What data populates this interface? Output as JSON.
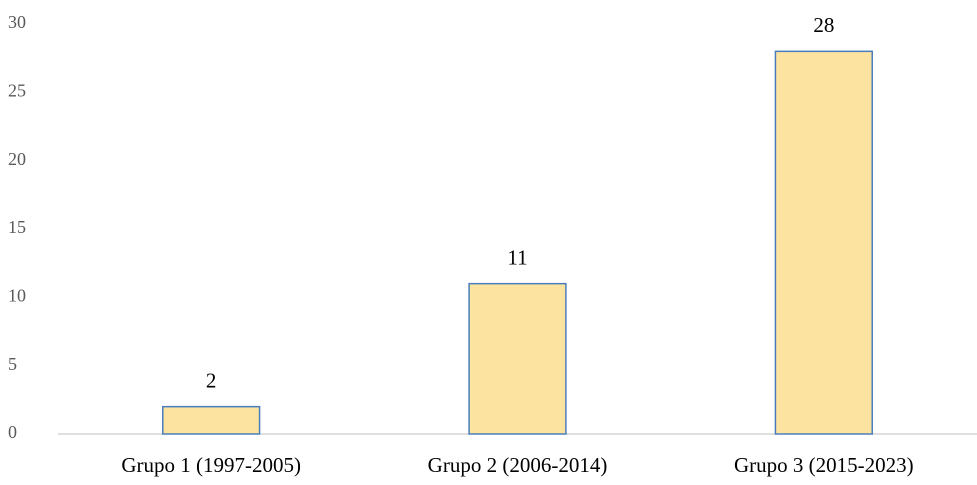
{
  "chart_data": {
    "type": "bar",
    "categories": [
      "Grupo 1 (1997-2005)",
      "Grupo 2 (2006-2014)",
      "Grupo 3 (2015-2023)"
    ],
    "values": [
      2,
      11,
      28
    ],
    "color": "#fce4a0",
    "edge_color": "#4a7ebb",
    "ylim": [
      0,
      30
    ],
    "yticks": [
      0,
      5,
      10,
      15,
      20,
      25,
      30
    ],
    "grid": false
  }
}
